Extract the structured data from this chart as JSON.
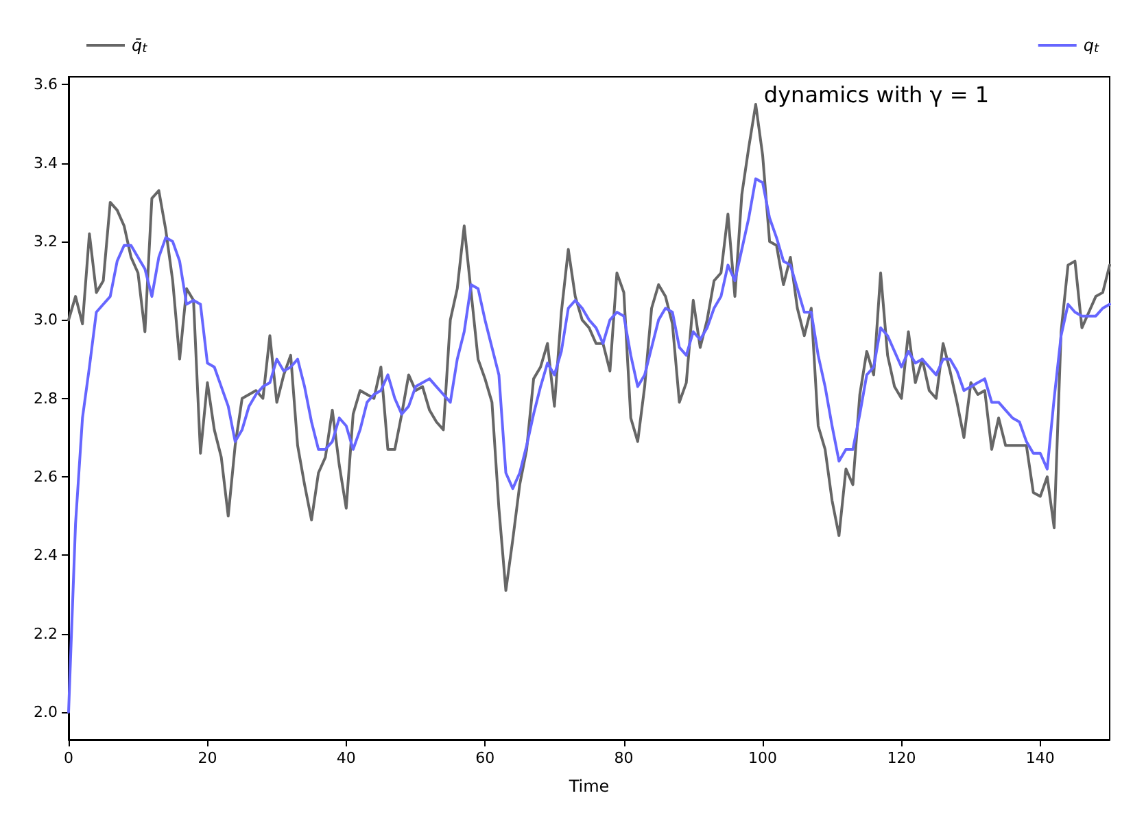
{
  "chart_data": {
    "type": "line",
    "xlabel": "Time",
    "annotations": [
      "dynamics with γ = 1"
    ],
    "x": [
      0,
      1,
      2,
      3,
      4,
      5,
      6,
      7,
      8,
      9,
      10,
      11,
      12,
      13,
      14,
      15,
      16,
      17,
      18,
      19,
      20,
      21,
      22,
      23,
      24,
      25,
      26,
      27,
      28,
      29,
      30,
      31,
      32,
      33,
      34,
      35,
      36,
      37,
      38,
      39,
      40,
      41,
      42,
      43,
      44,
      45,
      46,
      47,
      48,
      49,
      50,
      51,
      52,
      53,
      54,
      55,
      56,
      57,
      58,
      59,
      60,
      61,
      62,
      63,
      64,
      65,
      66,
      67,
      68,
      69,
      70,
      71,
      72,
      73,
      74,
      75,
      76,
      77,
      78,
      79,
      80,
      81,
      82,
      83,
      84,
      85,
      86,
      87,
      88,
      89,
      90,
      91,
      92,
      93,
      94,
      95,
      96,
      97,
      98,
      99,
      100,
      101,
      102,
      103,
      104,
      105,
      106,
      107,
      108,
      109,
      110,
      111,
      112,
      113,
      114,
      115,
      116,
      117,
      118,
      119,
      120,
      121,
      122,
      123,
      124,
      125,
      126,
      127,
      128,
      129,
      130,
      131,
      132,
      133,
      134,
      135,
      136,
      137,
      138,
      139,
      140,
      141,
      142,
      143,
      144,
      145,
      146,
      147,
      148,
      149,
      150
    ],
    "series": [
      {
        "name": "q̄$_{t}$",
        "color": "#666666",
        "values": [
          3.0,
          3.06,
          2.99,
          3.22,
          3.07,
          3.1,
          3.3,
          3.28,
          3.24,
          3.16,
          3.12,
          2.97,
          3.31,
          3.33,
          3.23,
          3.1,
          2.9,
          3.08,
          3.05,
          2.66,
          2.84,
          2.72,
          2.65,
          2.5,
          2.68,
          2.8,
          2.81,
          2.82,
          2.8,
          2.96,
          2.79,
          2.86,
          2.91,
          2.68,
          2.58,
          2.49,
          2.61,
          2.65,
          2.77,
          2.63,
          2.52,
          2.76,
          2.82,
          2.81,
          2.8,
          2.88,
          2.67,
          2.67,
          2.76,
          2.86,
          2.82,
          2.83,
          2.77,
          2.74,
          2.72,
          3.0,
          3.08,
          3.24,
          3.07,
          2.9,
          2.85,
          2.79,
          2.52,
          2.31,
          2.44,
          2.58,
          2.67,
          2.85,
          2.88,
          2.94,
          2.78,
          3.02,
          3.18,
          3.06,
          3.0,
          2.98,
          2.94,
          2.94,
          2.87,
          3.12,
          3.07,
          2.75,
          2.69,
          2.83,
          3.03,
          3.09,
          3.06,
          2.99,
          2.79,
          2.84,
          3.05,
          2.93,
          3.0,
          3.1,
          3.12,
          3.27,
          3.06,
          3.32,
          3.44,
          3.55,
          3.42,
          3.2,
          3.19,
          3.09,
          3.16,
          3.03,
          2.96,
          3.03,
          2.73,
          2.67,
          2.54,
          2.45,
          2.62,
          2.58,
          2.81,
          2.92,
          2.86,
          3.12,
          2.91,
          2.83,
          2.8,
          2.97,
          2.84,
          2.9,
          2.82,
          2.8,
          2.94,
          2.87,
          2.79,
          2.7,
          2.84,
          2.81,
          2.82,
          2.67,
          2.75,
          2.68,
          2.68,
          2.68,
          2.68,
          2.56,
          2.55,
          2.6,
          2.47,
          2.97,
          3.14,
          3.15,
          2.98,
          3.02,
          3.06,
          3.07,
          3.14
        ]
      },
      {
        "name": "q$_{t}$",
        "color": "#6666ff",
        "values": [
          2.0,
          2.48,
          2.75,
          2.88,
          3.02,
          3.04,
          3.06,
          3.15,
          3.19,
          3.19,
          3.16,
          3.13,
          3.06,
          3.16,
          3.21,
          3.2,
          3.15,
          3.04,
          3.05,
          3.04,
          2.89,
          2.88,
          2.83,
          2.78,
          2.69,
          2.72,
          2.78,
          2.81,
          2.83,
          2.84,
          2.9,
          2.87,
          2.88,
          2.9,
          2.83,
          2.74,
          2.67,
          2.67,
          2.69,
          2.75,
          2.73,
          2.67,
          2.72,
          2.79,
          2.81,
          2.82,
          2.86,
          2.8,
          2.76,
          2.78,
          2.83,
          2.84,
          2.85,
          2.83,
          2.81,
          2.79,
          2.9,
          2.97,
          3.09,
          3.08,
          3.0,
          2.93,
          2.86,
          2.61,
          2.57,
          2.61,
          2.68,
          2.76,
          2.83,
          2.89,
          2.86,
          2.92,
          3.03,
          3.05,
          3.03,
          3.0,
          2.98,
          2.94,
          3.0,
          3.02,
          3.01,
          2.91,
          2.83,
          2.86,
          2.93,
          3.0,
          3.03,
          3.02,
          2.93,
          2.91,
          2.97,
          2.95,
          2.98,
          3.03,
          3.06,
          3.14,
          3.1,
          3.18,
          3.26,
          3.36,
          3.35,
          3.26,
          3.21,
          3.15,
          3.14,
          3.08,
          3.02,
          3.02,
          2.91,
          2.83,
          2.73,
          2.64,
          2.67,
          2.67,
          2.76,
          2.86,
          2.88,
          2.98,
          2.96,
          2.92,
          2.88,
          2.92,
          2.89,
          2.9,
          2.88,
          2.86,
          2.9,
          2.9,
          2.87,
          2.82,
          2.83,
          2.84,
          2.85,
          2.79,
          2.79,
          2.77,
          2.75,
          2.74,
          2.69,
          2.66,
          2.66,
          2.62,
          2.8,
          2.96,
          3.04,
          3.02,
          3.01,
          3.01,
          3.01,
          3.03,
          3.04
        ]
      }
    ],
    "xlim": [
      0,
      150
    ],
    "xticks": [
      0,
      20,
      40,
      60,
      80,
      100,
      120,
      140
    ],
    "ylim": [
      1.93,
      3.62
    ],
    "yticks": [
      {
        "value": 2.0,
        "label": "2.0"
      },
      {
        "value": 2.2,
        "label": "2.2"
      },
      {
        "value": 2.4,
        "label": "2.4"
      },
      {
        "value": 2.6,
        "label": "2.6"
      },
      {
        "value": 2.8,
        "label": "2.8"
      },
      {
        "value": 3.0,
        "label": "3.0"
      },
      {
        "value": 3.2,
        "label": "3.2"
      },
      {
        "value": 3.4,
        "label": "3.4"
      },
      {
        "value": 3.6,
        "label": "3.6"
      }
    ],
    "legend": "top",
    "grid": false,
    "marker": "none",
    "line_style": "solid"
  }
}
